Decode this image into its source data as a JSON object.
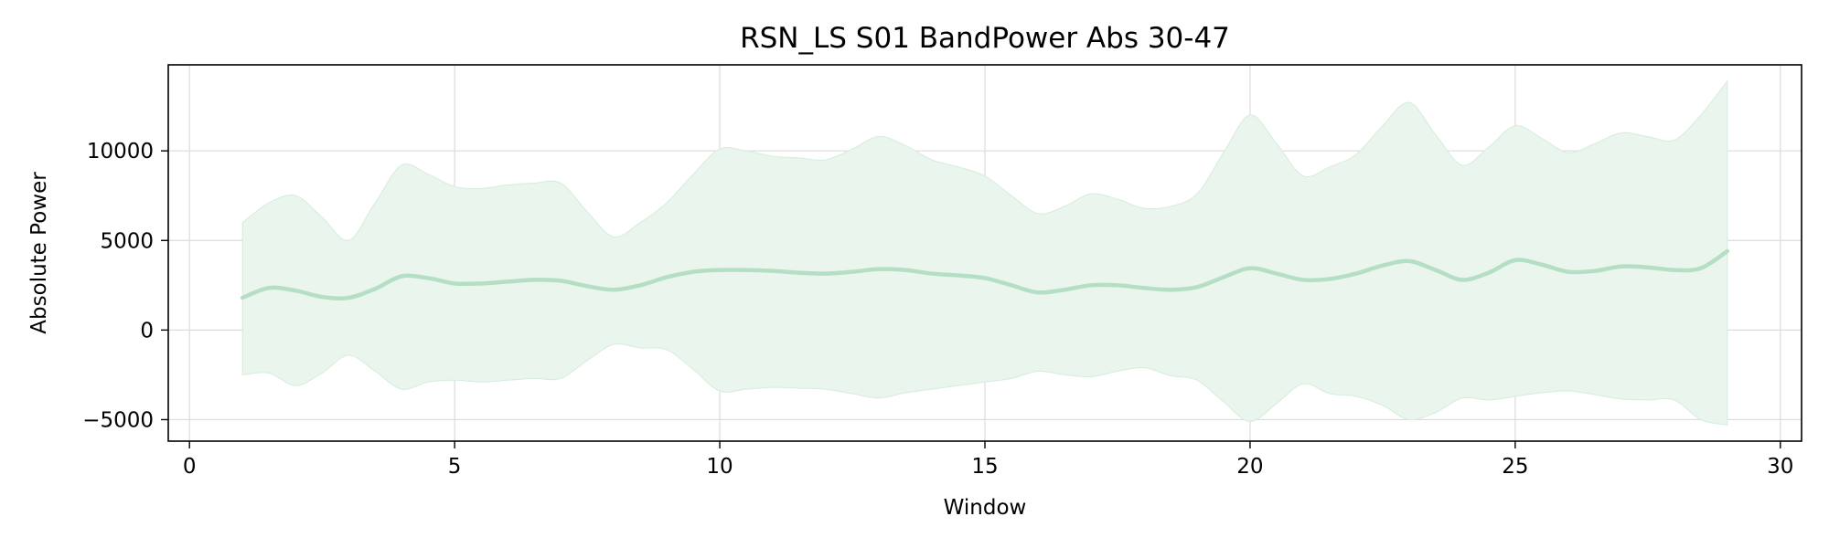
{
  "chart_data": {
    "type": "area",
    "title": "RSN_LS S01 BandPower Abs 30-47",
    "xlabel": "Window",
    "ylabel": "Absolute Power",
    "xlim": [
      -0.4,
      30.4
    ],
    "ylim": [
      -6200,
      14800
    ],
    "xticks": [
      0,
      5,
      10,
      15,
      20,
      25,
      30
    ],
    "xtick_labels": [
      "0",
      "5",
      "10",
      "15",
      "20",
      "25",
      "30"
    ],
    "yticks": [
      -5000,
      0,
      5000,
      10000
    ],
    "ytick_labels": [
      "−5000",
      "0",
      "5000",
      "10000"
    ],
    "grid": true,
    "color": "#b5dfc4",
    "band_color": "#eaf5ed",
    "series": [
      {
        "x": [
          1,
          1.5,
          2,
          2.5,
          3,
          3.5,
          4,
          4.5,
          5,
          5.5,
          6,
          6.5,
          7,
          7.5,
          8,
          8.5,
          9,
          9.5,
          10,
          10.5,
          11,
          11.5,
          12,
          12.5,
          13,
          13.5,
          14,
          14.5,
          15,
          15.5,
          16,
          16.5,
          17,
          17.5,
          18,
          18.5,
          19,
          19.5,
          20,
          20.5,
          21,
          21.5,
          22,
          22.5,
          23,
          23.5,
          24,
          24.5,
          25,
          25.5,
          26,
          26.5,
          27,
          27.5,
          28,
          28.5,
          29
        ],
        "values": [
          1800,
          2350,
          2200,
          1850,
          1800,
          2300,
          3000,
          2900,
          2600,
          2600,
          2700,
          2800,
          2750,
          2450,
          2250,
          2500,
          2950,
          3250,
          3350,
          3350,
          3300,
          3200,
          3150,
          3250,
          3400,
          3350,
          3150,
          3050,
          2900,
          2500,
          2100,
          2250,
          2500,
          2500,
          2350,
          2250,
          2400,
          2950,
          3450,
          3150,
          2800,
          2850,
          3150,
          3600,
          3850,
          3350,
          2800,
          3200,
          3900,
          3650,
          3250,
          3300,
          3550,
          3500,
          3350,
          3450,
          4400
        ],
        "upper": [
          6000,
          7100,
          7500,
          6300,
          5000,
          7100,
          9200,
          8700,
          8000,
          7900,
          8100,
          8200,
          8200,
          6600,
          5200,
          6000,
          7100,
          8700,
          10100,
          10000,
          9700,
          9600,
          9500,
          10100,
          10800,
          10300,
          9500,
          9100,
          8600,
          7500,
          6500,
          6900,
          7600,
          7300,
          6800,
          6900,
          7600,
          9900,
          12000,
          10400,
          8600,
          9100,
          9800,
          11400,
          12700,
          10900,
          9200,
          10200,
          11400,
          10700,
          9900,
          10400,
          11000,
          10800,
          10600,
          12000,
          13900
        ],
        "lower": [
          -2500,
          -2400,
          -3100,
          -2400,
          -1400,
          -2300,
          -3300,
          -2900,
          -2800,
          -2900,
          -2800,
          -2700,
          -2700,
          -1700,
          -800,
          -1000,
          -1100,
          -2200,
          -3400,
          -3300,
          -3200,
          -3250,
          -3300,
          -3550,
          -3800,
          -3500,
          -3300,
          -3100,
          -2900,
          -2700,
          -2300,
          -2500,
          -2600,
          -2300,
          -2100,
          -2550,
          -2800,
          -4000,
          -5100,
          -4100,
          -3000,
          -3550,
          -3700,
          -4200,
          -5000,
          -4600,
          -3800,
          -3900,
          -3700,
          -3500,
          -3400,
          -3600,
          -3850,
          -3900,
          -3900,
          -5000,
          -5300
        ]
      }
    ]
  }
}
